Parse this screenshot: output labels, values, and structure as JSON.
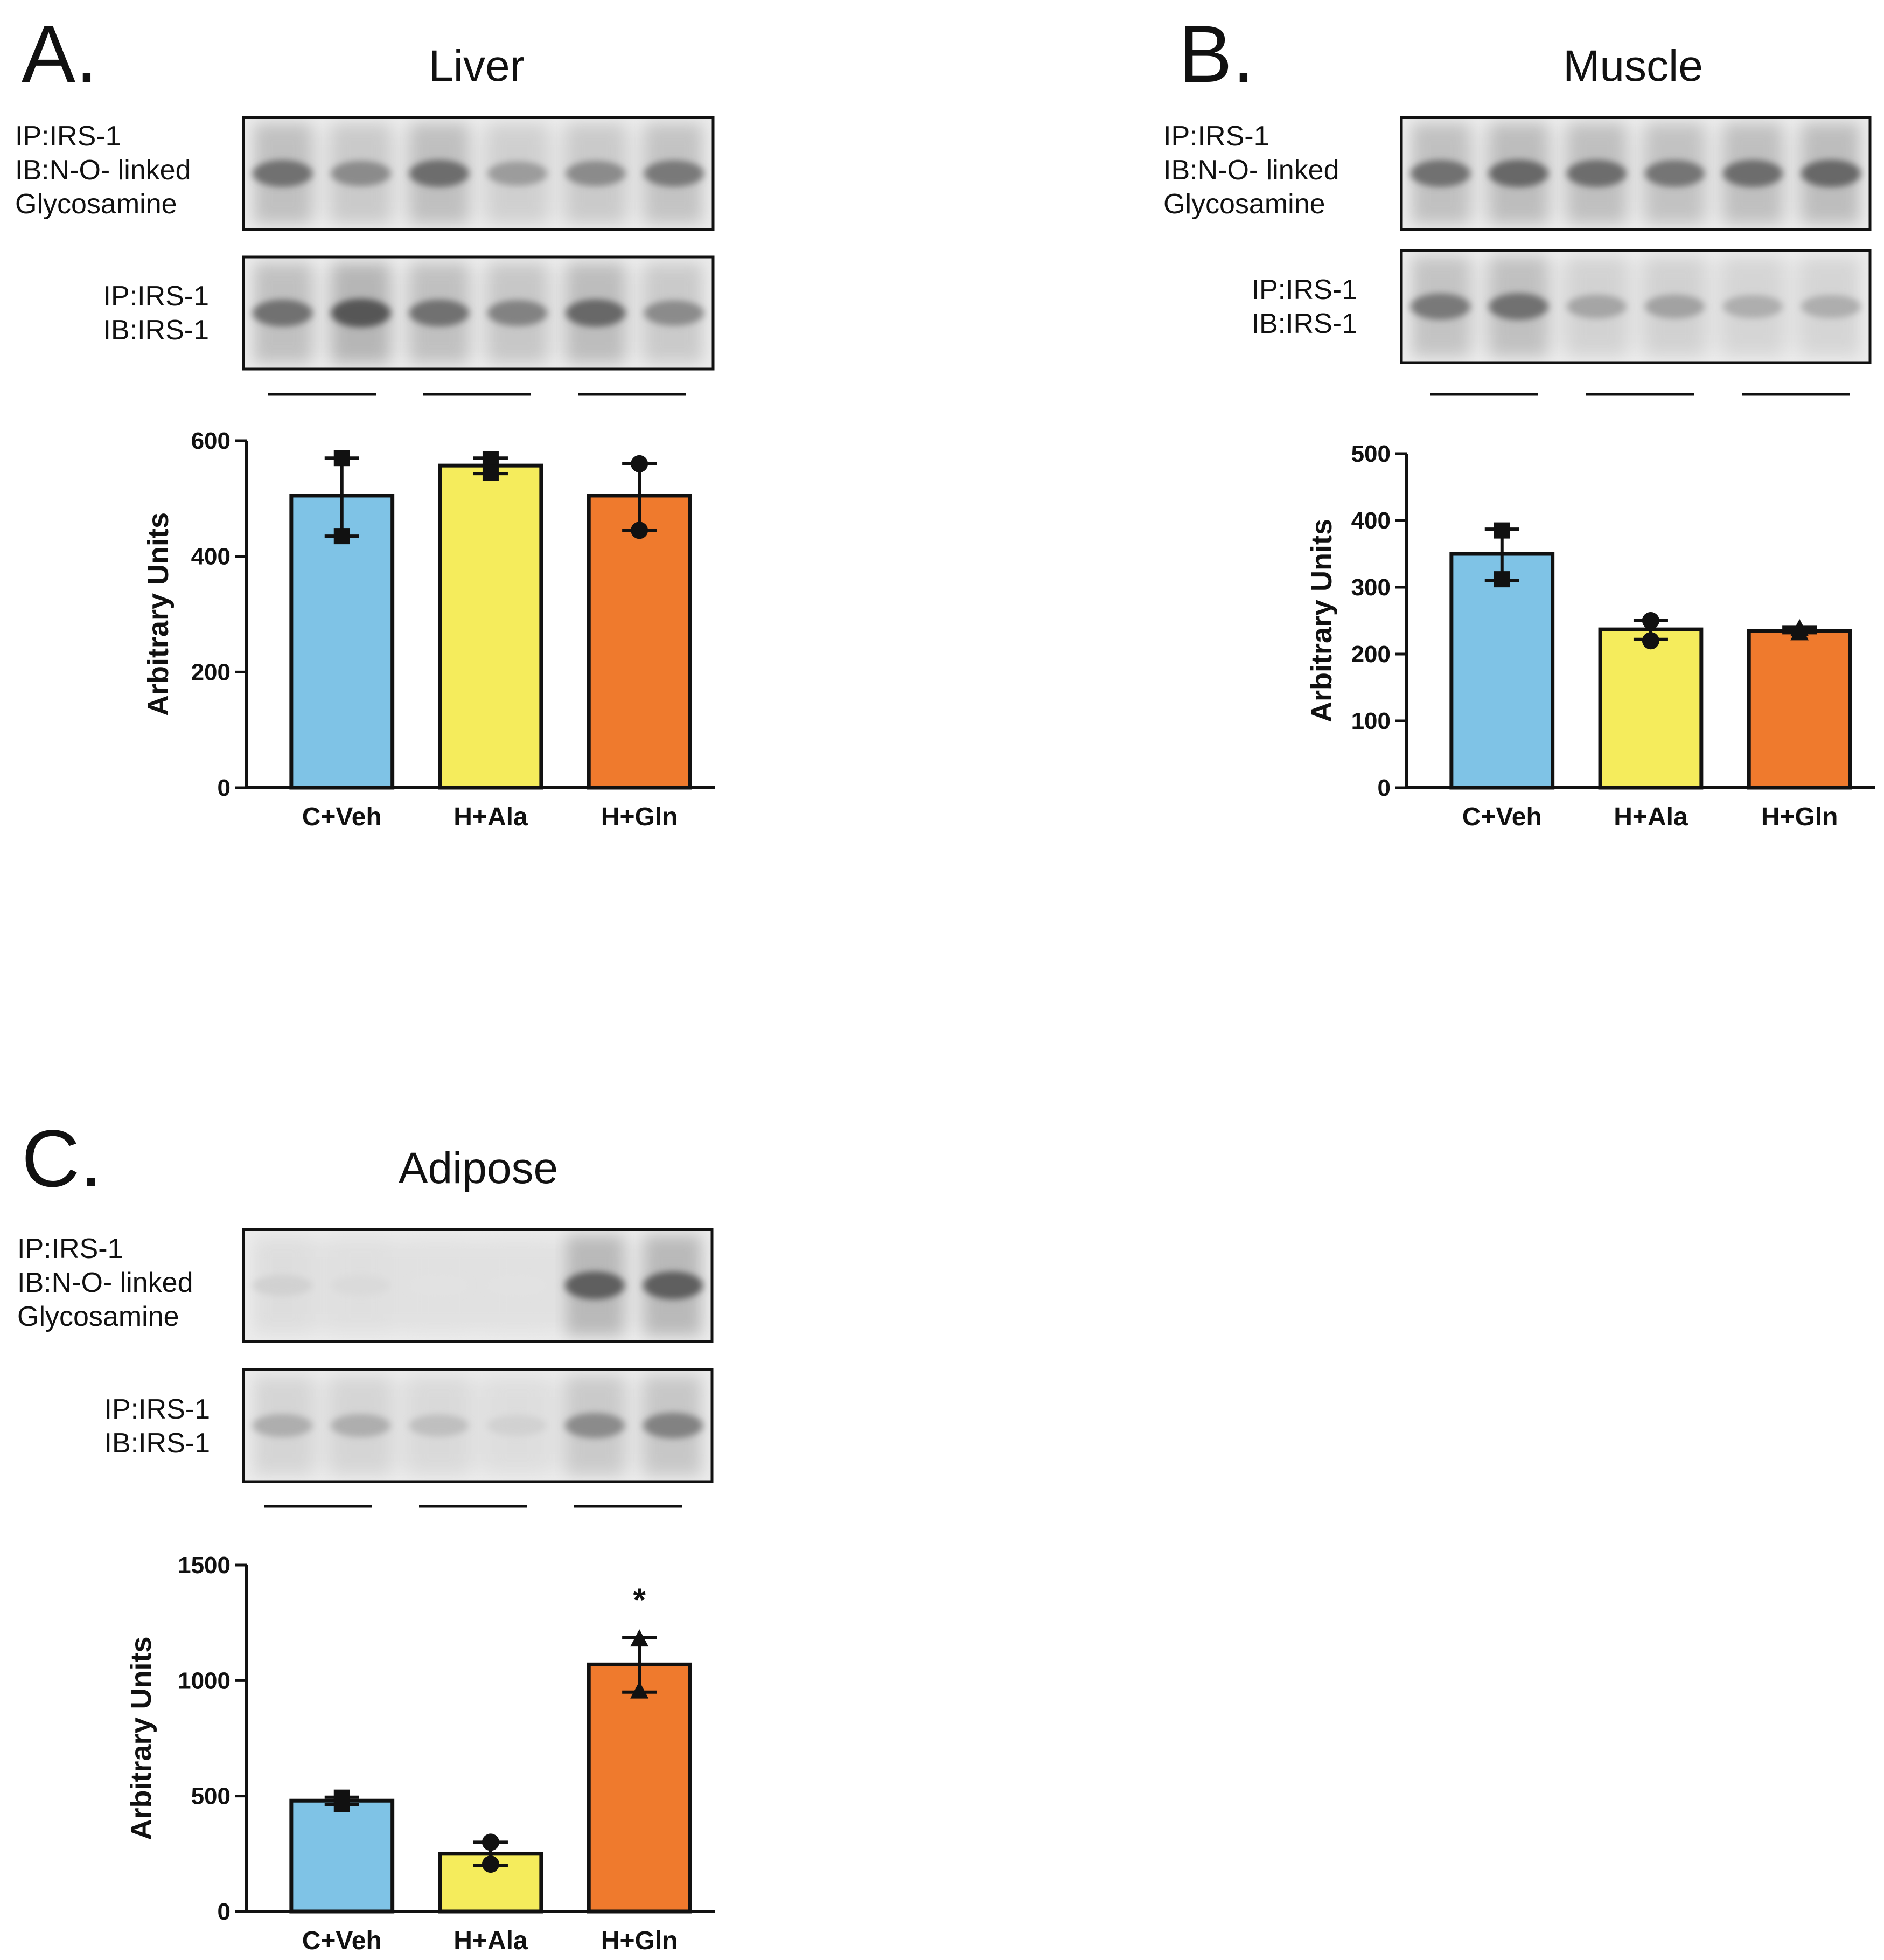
{
  "figure": {
    "colors": {
      "blue": "#7fc3e6",
      "yellow": "#f5ec5c",
      "orange": "#ef7a2d",
      "ink": "#111111"
    }
  },
  "panels": [
    {
      "letter": "A.",
      "title": "Liver",
      "blot_top": [
        "IP:IRS-1",
        "IB:N-O- linked",
        "Glycosamine"
      ],
      "blot_bottom": [
        "IP:IRS-1",
        "IB:IRS-1"
      ],
      "top_band_intensity": [
        0.7,
        0.55,
        0.72,
        0.45,
        0.55,
        0.65
      ],
      "bottom_band_intensity": [
        0.7,
        0.85,
        0.7,
        0.6,
        0.75,
        0.55
      ]
    },
    {
      "letter": "B.",
      "title": "Muscle",
      "blot_top": [
        "IP:IRS-1",
        "IB:N-O- linked",
        "Glycosamine"
      ],
      "blot_bottom": [
        "IP:IRS-1",
        "IB:IRS-1"
      ],
      "top_band_intensity": [
        0.7,
        0.75,
        0.72,
        0.68,
        0.72,
        0.75
      ],
      "bottom_band_intensity": [
        0.65,
        0.7,
        0.4,
        0.42,
        0.35,
        0.35
      ]
    },
    {
      "letter": "C.",
      "title": "Adipose",
      "blot_top": [
        "IP:IRS-1",
        "IB:N-O- linked",
        "Glycosamine"
      ],
      "blot_bottom": [
        "IP:IRS-1",
        "IB:IRS-1"
      ],
      "top_band_intensity": [
        0.15,
        0.1,
        0.05,
        0.05,
        0.8,
        0.8
      ],
      "bottom_band_intensity": [
        0.35,
        0.35,
        0.25,
        0.15,
        0.55,
        0.6
      ]
    }
  ],
  "chart_data": [
    {
      "type": "bar",
      "title": "Liver",
      "categories": [
        "C+Veh",
        "H+Ala",
        "H+Gln"
      ],
      "values": [
        505,
        557,
        505
      ],
      "error_upper": [
        570,
        570,
        560
      ],
      "error_lower": [
        435,
        543,
        445
      ],
      "points": [
        [
          570,
          435
        ],
        [
          568,
          545
        ],
        [
          560,
          445
        ]
      ],
      "markers": [
        "square",
        "square",
        "circle"
      ],
      "significance": [
        "",
        "",
        ""
      ],
      "ylabel": "Arbitrary Units",
      "xlabel": "",
      "ylim": [
        0,
        600
      ],
      "yticks": [
        0,
        200,
        400,
        600
      ],
      "ytick_labels": [
        "0",
        "200",
        "400",
        "600"
      ],
      "colors": [
        "#7fc3e6",
        "#f5ec5c",
        "#ef7a2d"
      ]
    },
    {
      "type": "bar",
      "title": "Muscle",
      "categories": [
        "C+Veh",
        "H+Ala",
        "H+Gln"
      ],
      "values": [
        350,
        237,
        235
      ],
      "error_upper": [
        387,
        250,
        240
      ],
      "error_lower": [
        310,
        222,
        232
      ],
      "points": [
        [
          385,
          312
        ],
        [
          250,
          220
        ],
        [
          238,
          232
        ]
      ],
      "markers": [
        "square",
        "circle",
        "triangle"
      ],
      "significance": [
        "",
        "",
        ""
      ],
      "ylabel": "Arbitrary Units",
      "xlabel": "",
      "ylim": [
        0,
        500
      ],
      "yticks": [
        0,
        100,
        200,
        300,
        400,
        500
      ],
      "ytick_labels": [
        "0",
        "100",
        "200",
        "300",
        "400",
        "500"
      ],
      "colors": [
        "#7fc3e6",
        "#f5ec5c",
        "#ef7a2d"
      ]
    },
    {
      "type": "bar",
      "title": "Adipose",
      "categories": [
        "C+Veh",
        "H+Ala",
        "H+Gln"
      ],
      "values": [
        480,
        250,
        1070
      ],
      "error_upper": [
        495,
        300,
        1185
      ],
      "error_lower": [
        463,
        200,
        950
      ],
      "points": [
        [
          493,
          465
        ],
        [
          300,
          205
        ],
        [
          1180,
          955
        ]
      ],
      "markers": [
        "square",
        "circle",
        "triangle"
      ],
      "significance": [
        "",
        "",
        "*"
      ],
      "ylabel": "Arbitrary Units",
      "xlabel": "",
      "ylim": [
        0,
        1500
      ],
      "yticks": [
        0,
        500,
        1000,
        1500
      ],
      "ytick_labels": [
        "0",
        "500",
        "1000",
        "1500"
      ],
      "colors": [
        "#7fc3e6",
        "#f5ec5c",
        "#ef7a2d"
      ]
    }
  ]
}
